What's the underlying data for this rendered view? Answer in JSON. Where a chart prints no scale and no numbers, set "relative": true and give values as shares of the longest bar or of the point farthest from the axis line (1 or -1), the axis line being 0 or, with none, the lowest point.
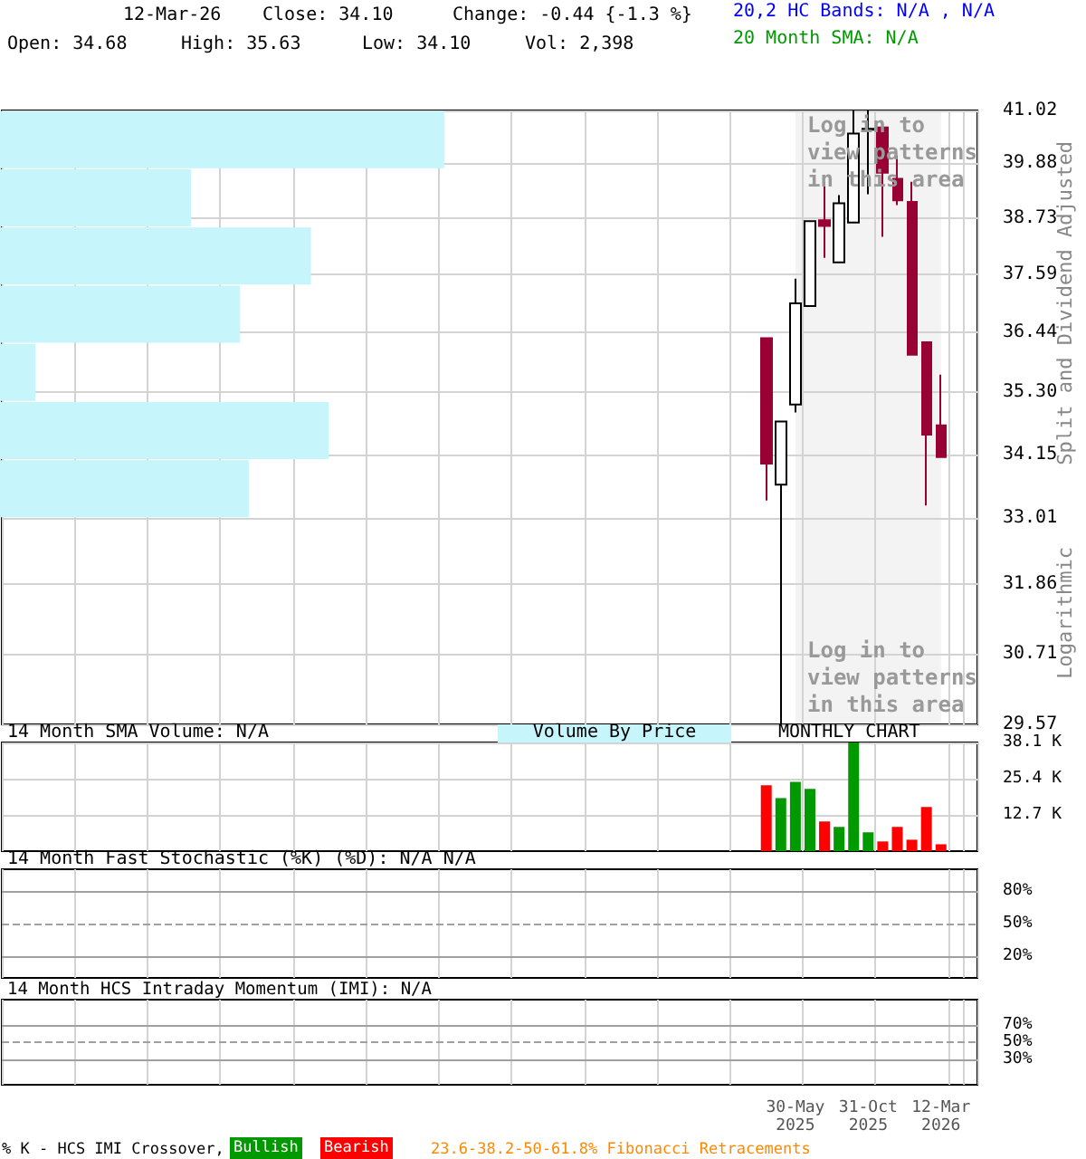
{
  "chart_data": [
    {
      "type": "candlestick",
      "tick_labels": "y",
      "log": true,
      "grid": true,
      "annotations": [
        "12-Mar-26",
        "Close: 34.10",
        "Change: -0.44 {-1.3 %}",
        "Open: 34.68",
        "High: 35.63",
        "Low: 34.10",
        "Vol: 2,398",
        "20,2 HC Bands: N/A , N/A",
        "20 Month SMA: N/A",
        "Split and Dividend Adjusted",
        "Logarithmic",
        "Log in to view patterns in this area",
        "Log in to view patterns in this area"
      ],
      "categories": [
        null,
        null,
        null,
        null,
        null,
        null,
        null,
        null,
        null,
        null,
        null,
        null,
        null,
        null,
        null,
        null,
        null,
        null,
        null,
        null,
        null,
        null,
        null,
        null,
        null,
        null,
        null,
        null,
        null,
        null,
        null,
        null,
        null,
        null,
        null,
        null,
        null,
        null,
        null,
        null,
        null,
        null,
        null,
        null,
        null,
        null,
        null,
        null,
        null,
        null,
        null,
        null,
        null,
        null,
        "30-May\n2025",
        null,
        null,
        null,
        null,
        "31-Oct\n2025",
        null,
        null,
        null,
        null,
        "12-Mar\n2026",
        null,
        null
      ],
      "ohlc": [
        null,
        null,
        null,
        null,
        null,
        null,
        null,
        null,
        null,
        null,
        null,
        null,
        null,
        null,
        null,
        null,
        null,
        null,
        null,
        null,
        null,
        null,
        null,
        null,
        null,
        null,
        null,
        null,
        null,
        null,
        null,
        null,
        null,
        null,
        null,
        null,
        null,
        null,
        null,
        null,
        null,
        null,
        null,
        null,
        null,
        null,
        null,
        null,
        null,
        null,
        null,
        null,
        [
          36.33,
          36.33,
          33.32,
          33.98
        ],
        [
          33.6,
          34.75,
          29.57,
          34.75
        ],
        [
          35.07,
          37.5,
          34.92,
          37.01
        ],
        [
          36.96,
          38.67,
          36.96,
          38.67
        ],
        [
          38.69,
          39.49,
          37.92,
          38.57
        ],
        [
          37.83,
          39.21,
          37.83,
          39.04
        ],
        [
          38.64,
          41.02,
          38.64,
          40.52
        ],
        [
          40.6,
          41.02,
          39.23,
          40.62
        ],
        [
          40.65,
          40.65,
          38.35,
          39.68
        ],
        [
          39.55,
          40.04,
          39.0,
          39.1
        ],
        [
          39.07,
          39.49,
          36.01,
          36.01
        ],
        [
          36.25,
          36.25,
          33.23,
          34.51
        ],
        [
          34.68,
          35.63,
          34.1,
          34.1
        ],
        null,
        null
      ],
      "ylim": [
        29.57,
        41.02
      ],
      "yticks": [
        29.57,
        30.71,
        31.86,
        33.01,
        34.15,
        {
          "value": 35.3,
          "label": "35.30"
        },
        36.44,
        37.59,
        38.73,
        39.88,
        41.02
      ],
      "bands": [
        {
          "axis": "x",
          "from": "30-May\n2025",
          "to": "12-Mar\n2026",
          "color": "#f3f3f3"
        }
      ]
    },
    {
      "type": "bar",
      "orientation": "horizontal",
      "relative": true,
      "categories": [
        null,
        null,
        null,
        null,
        null,
        null,
        null
      ],
      "values": [
        1,
        0.43,
        0.7,
        0.54,
        0.08,
        0.74,
        0.56
      ],
      "color": "#c6f5fc"
    },
    {
      "type": "bar",
      "tick_labels": "y",
      "grid": true,
      "title": "14 Month SMA Volume: N/A",
      "annotations": [
        "MONTHLY CHART",
        "Volume By Price"
      ],
      "categories": [
        null,
        null,
        null,
        null,
        null,
        null,
        null,
        null,
        null,
        null,
        null,
        null,
        null,
        null,
        null,
        null,
        null,
        null,
        null,
        null,
        null,
        null,
        null,
        null,
        null,
        null,
        null,
        null,
        null,
        null,
        null,
        null,
        null,
        null,
        null,
        null,
        null,
        null,
        null,
        null,
        null,
        null,
        null,
        null,
        null,
        null,
        null,
        null,
        null,
        null,
        null,
        null,
        null,
        null,
        "30-May\n2025",
        null,
        null,
        null,
        null,
        "31-Oct\n2025",
        null,
        null,
        null,
        null,
        "12-Mar\n2026",
        null,
        null
      ],
      "values": [
        null,
        null,
        null,
        null,
        null,
        null,
        null,
        null,
        null,
        null,
        null,
        null,
        null,
        null,
        null,
        null,
        null,
        null,
        null,
        null,
        null,
        null,
        null,
        null,
        null,
        null,
        null,
        null,
        null,
        null,
        null,
        null,
        null,
        null,
        null,
        null,
        null,
        null,
        null,
        null,
        null,
        null,
        null,
        null,
        null,
        null,
        null,
        null,
        null,
        null,
        null,
        null,
        23.1,
        18.6,
        24.3,
        21.8,
        10.4,
        8.5,
        38.1,
        6.6,
        3.4,
        8.5,
        4.0,
        15.5,
        2.4,
        null,
        null
      ],
      "colors": [
        null,
        null,
        null,
        null,
        null,
        null,
        null,
        null,
        null,
        null,
        null,
        null,
        null,
        null,
        null,
        null,
        null,
        null,
        null,
        null,
        null,
        null,
        null,
        null,
        null,
        null,
        null,
        null,
        null,
        null,
        null,
        null,
        null,
        null,
        null,
        null,
        null,
        null,
        null,
        null,
        null,
        null,
        null,
        null,
        null,
        null,
        null,
        null,
        null,
        null,
        null,
        null,
        "#ff0000",
        "#009900",
        "#009900",
        "#009900",
        "#ff0000",
        "#009900",
        "#009900",
        "#009900",
        "#ff0000",
        "#ff0000",
        "#ff0000",
        "#ff0000",
        "#ff0000",
        null,
        null
      ],
      "ylim": [
        0,
        38.1
      ],
      "yticks": [
        {
          "value": 12.7,
          "label": "12.7 K"
        },
        {
          "value": 25.4,
          "label": "25.4 K"
        },
        {
          "value": 38.1,
          "label": "38.1 K"
        }
      ]
    },
    {
      "type": "line",
      "tick_labels": "y",
      "grid": "x",
      "title": "14 Month Fast Stochastic (%K) (%D): N/A   N/A",
      "categories": [
        null,
        null,
        null,
        null,
        null,
        null,
        null,
        null,
        null,
        null,
        null,
        null,
        null,
        null,
        null,
        null,
        null,
        null,
        null,
        null,
        null,
        null,
        null,
        null,
        null,
        null,
        null,
        null,
        null,
        null,
        null,
        null,
        null,
        null,
        null,
        null,
        null,
        null,
        null,
        null,
        null,
        null,
        null,
        null,
        null,
        null,
        null,
        null,
        null,
        null,
        null,
        null,
        null,
        null,
        "30-May\n2025",
        null,
        null,
        null,
        null,
        "31-Oct\n2025",
        null,
        null,
        null,
        null,
        "12-Mar\n2026",
        null,
        null
      ],
      "ylim": [
        0,
        100
      ],
      "yticks": [
        {
          "value": 20,
          "label": "20%"
        },
        {
          "value": 50,
          "label": "50%"
        },
        {
          "value": 80,
          "label": "80%"
        }
      ],
      "ref_lines": [
        {
          "axis": "y",
          "value": 80,
          "color": "#a0a0a0"
        },
        {
          "axis": "y",
          "value": 50,
          "color": "#a0a0a0",
          "line_style": "dashed"
        },
        {
          "axis": "y",
          "value": 20,
          "color": "#a0a0a0"
        }
      ]
    },
    {
      "type": "line",
      "grid": "x",
      "title": "14 Month HCS Intraday Momentum (IMI): N/A",
      "annotations": [
        "% K - HCS IMI Crossover,",
        "Bullish",
        "Bearish",
        "23.6-38.2-50-61.8% Fibonacci Retracements"
      ],
      "categories": [
        null,
        null,
        null,
        null,
        null,
        null,
        null,
        null,
        null,
        null,
        null,
        null,
        null,
        null,
        null,
        null,
        null,
        null,
        null,
        null,
        null,
        null,
        null,
        null,
        null,
        null,
        null,
        null,
        null,
        null,
        null,
        null,
        null,
        null,
        null,
        null,
        null,
        null,
        null,
        null,
        null,
        null,
        null,
        null,
        null,
        null,
        null,
        null,
        null,
        null,
        null,
        null,
        null,
        null,
        "30-May\n2025",
        null,
        null,
        null,
        null,
        "31-Oct\n2025",
        null,
        null,
        null,
        null,
        "12-Mar\n2026",
        null,
        null
      ],
      "ylim": [
        0,
        100
      ],
      "yticks": [
        {
          "value": 30,
          "label": "30%"
        },
        {
          "value": 50,
          "label": "50%"
        },
        {
          "value": 70,
          "label": "70%"
        }
      ],
      "ref_lines": [
        {
          "axis": "y",
          "value": 70,
          "color": "#a0a0a0"
        },
        {
          "axis": "y",
          "value": 50,
          "color": "#a0a0a0",
          "line_style": "dashed"
        },
        {
          "axis": "y",
          "value": 30,
          "color": "#a0a0a0"
        }
      ]
    }
  ]
}
